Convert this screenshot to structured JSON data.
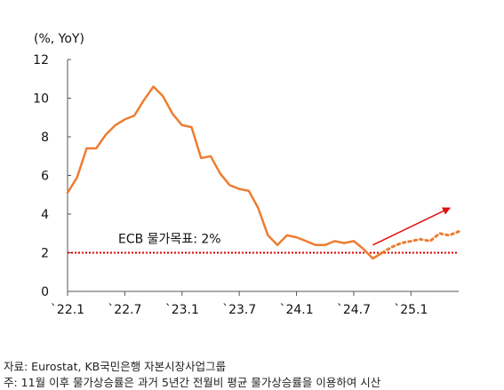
{
  "chart_data": {
    "type": "line",
    "title": "",
    "ylabel": "(%, YoY)",
    "xlabel": "",
    "ylim": [
      0,
      12
    ],
    "yticks": [
      "0",
      "2",
      "4",
      "6",
      "8",
      "10",
      "12"
    ],
    "xtick_labels": [
      "`22.1",
      "`22.7",
      "`23.1",
      "`23.7",
      "`24.1",
      "`24.7",
      "`25.1"
    ],
    "x_range": [
      "2022-01",
      "2025-06"
    ],
    "grid": false,
    "series": [
      {
        "name": "",
        "style": "solid",
        "color": "#ed7d31",
        "x": [
          "2022-01",
          "2022-02",
          "2022-03",
          "2022-04",
          "2022-05",
          "2022-06",
          "2022-07",
          "2022-08",
          "2022-09",
          "2022-10",
          "2022-11",
          "2022-12",
          "2023-01",
          "2023-02",
          "2023-03",
          "2023-04",
          "2023-05",
          "2023-06",
          "2023-07",
          "2023-08",
          "2023-09",
          "2023-10",
          "2023-11",
          "2023-12",
          "2024-01",
          "2024-02",
          "2024-03",
          "2024-04",
          "2024-05",
          "2024-06",
          "2024-07",
          "2024-08",
          "2024-09",
          "2024-10"
        ],
        "values": [
          5.1,
          5.9,
          7.4,
          7.4,
          8.1,
          8.6,
          8.9,
          9.1,
          9.9,
          10.6,
          10.1,
          9.2,
          8.6,
          8.5,
          6.9,
          7.0,
          6.1,
          5.5,
          5.3,
          5.2,
          4.3,
          2.9,
          2.4,
          2.9,
          2.8,
          2.6,
          2.4,
          2.4,
          2.6,
          2.5,
          2.6,
          2.2,
          1.7,
          2.0
        ]
      },
      {
        "name": "",
        "style": "dotted",
        "color": "#ed7d31",
        "x": [
          "2024-10",
          "2024-11",
          "2024-12",
          "2025-01",
          "2025-02",
          "2025-03",
          "2025-04",
          "2025-05",
          "2025-06"
        ],
        "values": [
          2.0,
          2.3,
          2.5,
          2.6,
          2.7,
          2.6,
          3.0,
          2.9,
          3.1
        ]
      }
    ],
    "reference_lines": [
      {
        "y": 2,
        "label": "ECB 물가목표: 2%",
        "color": "#e00000",
        "style": "dotted"
      }
    ],
    "annotations": [
      {
        "kind": "arrow",
        "color": "#e01010",
        "from": [
          "2024-09",
          2.4
        ],
        "to": [
          "2025-05",
          4.3
        ]
      }
    ]
  },
  "notes": {
    "source": "자료: Eurostat, KB국민은행 자본시장사업그룹",
    "assumption": "주: 11월 이후 물가상승률은 과거 5년간 전월비 평균 물가상승률을 이용하여 시산"
  }
}
